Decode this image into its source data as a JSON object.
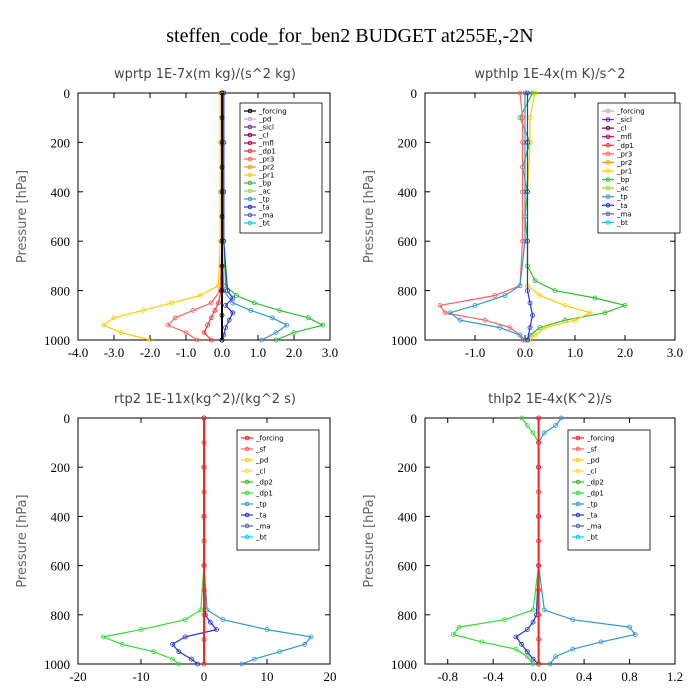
{
  "title": "steffen_code_for_ben2  BUDGET at255E,-2N",
  "chart_data": [
    {
      "type": "line",
      "title": "wprtp  1E-7x(m kg)/(s^2 kg)",
      "ylabel": "Pressure [hPa]",
      "xlim": [
        -4.0,
        3.0
      ],
      "ylim": [
        1000,
        0
      ],
      "xticks": [
        "-4.0",
        "-3.0",
        "-2.0",
        "-1.0",
        "0.0",
        "1.0",
        "2.0",
        "3.0"
      ],
      "xtick_values": [
        -4,
        -3,
        -2,
        -1,
        0,
        1,
        2,
        3
      ],
      "yticks": [
        0,
        200,
        400,
        600,
        800,
        1000
      ],
      "legend": [
        "_forcing",
        "_pd",
        "_sicl",
        "_cl",
        "_mfl",
        "_dp1",
        "_pr3",
        "_pr2",
        "_pr1",
        "_bp",
        "_ac",
        "_tp",
        "_ta",
        "_ma",
        "_bt"
      ],
      "colors": [
        "#000000",
        "#c8a0e0",
        "#8020a0",
        "#800040",
        "#b00060",
        "#ff3030",
        "#ff6060",
        "#ff9900",
        "#ffcc00",
        "#33bb33",
        "#99dd33",
        "#3399cc",
        "#2233dd",
        "#5566aa",
        "#00ccff"
      ],
      "series": [
        {
          "name": "_bp",
          "p": [
            0,
            200,
            400,
            600,
            780,
            820,
            850,
            880,
            910,
            940,
            970,
            1000
          ],
          "values": [
            0.05,
            0.05,
            0.05,
            0.05,
            0.1,
            0.4,
            0.9,
            1.6,
            2.4,
            2.8,
            2.0,
            1.5
          ]
        },
        {
          "name": "_pr1",
          "p": [
            0,
            200,
            400,
            600,
            780,
            820,
            850,
            880,
            910,
            940,
            970,
            1000
          ],
          "values": [
            -0.05,
            -0.05,
            -0.05,
            -0.05,
            -0.1,
            -0.6,
            -1.4,
            -2.2,
            -3.0,
            -3.3,
            -2.8,
            -2.0
          ]
        },
        {
          "name": "_pr3",
          "p": [
            0,
            200,
            400,
            600,
            800,
            850,
            880,
            910,
            940,
            970,
            1000
          ],
          "values": [
            0,
            0,
            0,
            0,
            -0.05,
            -0.3,
            -0.8,
            -1.3,
            -1.5,
            -1.0,
            -0.7
          ]
        },
        {
          "name": "_tp",
          "p": [
            0,
            200,
            400,
            600,
            800,
            850,
            880,
            910,
            940,
            970,
            1000
          ],
          "values": [
            0,
            0,
            0,
            0,
            0.05,
            0.3,
            0.8,
            1.4,
            1.8,
            1.5,
            1.1
          ]
        },
        {
          "name": "_ta",
          "p": [
            0,
            200,
            400,
            600,
            800,
            830,
            860,
            890,
            920,
            950,
            980,
            1000
          ],
          "values": [
            0.05,
            0.05,
            0.05,
            0.05,
            0.15,
            0.3,
            0.1,
            0.3,
            0.2,
            0.1,
            0.05,
            0.0
          ]
        },
        {
          "name": "_dp1",
          "p": [
            0,
            200,
            400,
            600,
            800,
            850,
            880,
            910,
            940,
            970,
            1000
          ],
          "values": [
            0,
            0,
            0,
            0,
            -0.02,
            -0.1,
            -0.2,
            -0.3,
            -0.4,
            -0.5,
            -0.3
          ]
        },
        {
          "name": "_forcing",
          "p": [
            0,
            100,
            200,
            300,
            400,
            500,
            600,
            700,
            800,
            900,
            1000
          ],
          "values": [
            0,
            0,
            0,
            0,
            0,
            0,
            0,
            0,
            0,
            0,
            0
          ]
        }
      ]
    },
    {
      "type": "line",
      "title": "wpthlp  1E-4x(m K)/s^2",
      "ylabel": "Pressure [hPa]",
      "xlim": [
        -2.0,
        3.0
      ],
      "ylim": [
        1000,
        0
      ],
      "xticks": [
        "-1.0",
        "0.0",
        "1.0",
        "2.0",
        "3.0"
      ],
      "xtick_values": [
        -1,
        0,
        1,
        2,
        3
      ],
      "yticks": [
        0,
        200,
        400,
        600,
        800,
        1000
      ],
      "legend": [
        "_forcing",
        "_sicl",
        "_cl",
        "_mfl",
        "_dp1",
        "_pr3",
        "_pr2",
        "_pr1",
        "_bp",
        "_ac",
        "_tp",
        "_ta",
        "_ma",
        "_bt"
      ],
      "colors": [
        "#c8a0e0",
        "#8020a0",
        "#800040",
        "#b00060",
        "#ff3030",
        "#ff6060",
        "#ff9900",
        "#ffcc00",
        "#33bb33",
        "#99dd33",
        "#3399cc",
        "#2233dd",
        "#5566aa",
        "#00ccff"
      ],
      "series": [
        {
          "name": "_bp",
          "p": [
            0,
            100,
            200,
            300,
            400,
            500,
            600,
            700,
            760,
            800,
            830,
            860,
            890,
            920,
            950,
            980,
            1000
          ],
          "values": [
            0.15,
            -0.1,
            0.1,
            -0.05,
            0.05,
            0.0,
            0.05,
            0.05,
            0.2,
            0.6,
            1.4,
            2.0,
            1.6,
            0.8,
            0.3,
            0.1,
            0.05
          ]
        },
        {
          "name": "_pr1",
          "p": [
            0,
            100,
            200,
            400,
            600,
            780,
            820,
            860,
            890,
            920,
            950,
            980,
            1000
          ],
          "values": [
            0.2,
            0.1,
            0.1,
            0.05,
            0.05,
            0.05,
            0.3,
            0.8,
            1.3,
            1.0,
            0.4,
            0.2,
            0.1
          ]
        },
        {
          "name": "_pr3",
          "p": [
            0,
            100,
            200,
            400,
            600,
            780,
            820,
            860,
            890,
            920,
            950,
            980,
            1000
          ],
          "values": [
            -0.1,
            -0.05,
            -0.05,
            -0.05,
            -0.05,
            -0.1,
            -0.6,
            -1.7,
            -1.6,
            -0.8,
            -0.3,
            -0.1,
            -0.05
          ]
        },
        {
          "name": "_tp",
          "p": [
            0,
            200,
            400,
            600,
            780,
            820,
            860,
            890,
            920,
            950,
            980,
            1000
          ],
          "values": [
            0,
            0,
            0,
            0,
            -0.1,
            -0.4,
            -1.0,
            -1.5,
            -1.3,
            -0.5,
            -0.1,
            0.0
          ]
        },
        {
          "name": "_ta",
          "p": [
            0,
            200,
            400,
            600,
            800,
            850,
            900,
            950,
            1000
          ],
          "values": [
            0.05,
            0.05,
            0.05,
            0.05,
            0.05,
            0.1,
            0.15,
            0.1,
            0.05
          ]
        }
      ]
    },
    {
      "type": "line",
      "title": "rtp2  1E-11x(kg^2)/(kg^2 s)",
      "ylabel": "Pressure [hPa]",
      "xlim": [
        -20,
        20
      ],
      "ylim": [
        1000,
        0
      ],
      "xticks": [
        "-20",
        "-10",
        "0",
        "10",
        "20"
      ],
      "xtick_values": [
        -20,
        -10,
        0,
        10,
        20
      ],
      "yticks": [
        0,
        200,
        400,
        600,
        800,
        1000
      ],
      "legend": [
        "_forcing",
        "_sf",
        "_pd",
        "_cl",
        "_dp2",
        "_dp1",
        "_tp",
        "_ta",
        "_ma",
        "_bt"
      ],
      "colors": [
        "#ff2020",
        "#ff6060",
        "#ffcc00",
        "#ffdd33",
        "#33bb33",
        "#33dd33",
        "#3399cc",
        "#2233dd",
        "#5566aa",
        "#00ccff"
      ],
      "series": [
        {
          "name": "_dp1",
          "p": [
            0,
            200,
            400,
            600,
            780,
            820,
            860,
            890,
            920,
            950,
            980,
            1000
          ],
          "values": [
            0,
            0,
            0,
            0,
            -0.5,
            -3,
            -10,
            -16,
            -13,
            -8,
            -5,
            -4
          ]
        },
        {
          "name": "_tp",
          "p": [
            0,
            200,
            400,
            600,
            780,
            820,
            860,
            890,
            920,
            950,
            980,
            1000
          ],
          "values": [
            0,
            0,
            0,
            0,
            0.5,
            3,
            10,
            17,
            16,
            12,
            8,
            6
          ]
        },
        {
          "name": "_ta",
          "p": [
            0,
            200,
            400,
            600,
            800,
            830,
            860,
            890,
            920,
            950,
            980,
            1000
          ],
          "values": [
            0,
            0,
            0,
            0,
            0.2,
            1,
            2,
            -3,
            -5,
            -4,
            -2,
            -1
          ]
        },
        {
          "name": "_forcing",
          "p": [
            0,
            100,
            200,
            300,
            400,
            500,
            600,
            700,
            800,
            900,
            1000
          ],
          "values": [
            0,
            0,
            0,
            0,
            0,
            0,
            0,
            0,
            0,
            0,
            0
          ]
        }
      ]
    },
    {
      "type": "line",
      "title": "thlp2  1E-4x(K^2)/s",
      "ylabel": "Pressure [hPa]",
      "xlim": [
        -1.0,
        1.2
      ],
      "ylim": [
        1000,
        0
      ],
      "xticks": [
        "-0.8",
        "-0.4",
        "0.0",
        "0.4",
        "0.8",
        "1.2"
      ],
      "xtick_values": [
        -0.8,
        -0.4,
        0,
        0.4,
        0.8,
        1.2
      ],
      "yticks": [
        0,
        200,
        400,
        600,
        800,
        1000
      ],
      "legend": [
        "_forcing",
        "_sf",
        "_pd",
        "_cl",
        "_dp2",
        "_dp1",
        "_tp",
        "_ta",
        "_ma",
        "_bt"
      ],
      "colors": [
        "#ff2020",
        "#ff6060",
        "#ffcc00",
        "#ffdd33",
        "#33bb33",
        "#33dd33",
        "#3399cc",
        "#2233dd",
        "#5566aa",
        "#00ccff"
      ],
      "series": [
        {
          "name": "_dp1",
          "p": [
            0,
            30,
            60,
            100,
            200,
            400,
            600,
            780,
            820,
            850,
            880,
            910,
            940,
            970,
            1000
          ],
          "values": [
            -0.15,
            -0.1,
            -0.05,
            0,
            0,
            0,
            0,
            -0.05,
            -0.3,
            -0.7,
            -0.75,
            -0.5,
            -0.2,
            -0.1,
            -0.05
          ]
        },
        {
          "name": "_tp",
          "p": [
            0,
            30,
            60,
            100,
            200,
            400,
            600,
            780,
            820,
            850,
            880,
            910,
            940,
            970,
            1000
          ],
          "values": [
            0.2,
            0.15,
            0.05,
            0,
            0,
            0,
            0,
            0.05,
            0.3,
            0.8,
            0.85,
            0.55,
            0.3,
            0.15,
            0.1
          ]
        },
        {
          "name": "_ta",
          "p": [
            0,
            200,
            400,
            600,
            800,
            830,
            860,
            890,
            920,
            950,
            980,
            1000
          ],
          "values": [
            0,
            0,
            0,
            0,
            -0.02,
            -0.05,
            -0.1,
            -0.2,
            -0.15,
            -0.1,
            -0.05,
            0.0
          ]
        },
        {
          "name": "_forcing",
          "p": [
            0,
            100,
            200,
            300,
            400,
            500,
            600,
            700,
            800,
            900,
            1000
          ],
          "values": [
            0,
            0,
            0,
            0,
            0,
            0,
            0,
            0,
            0,
            0,
            0
          ]
        }
      ]
    }
  ]
}
